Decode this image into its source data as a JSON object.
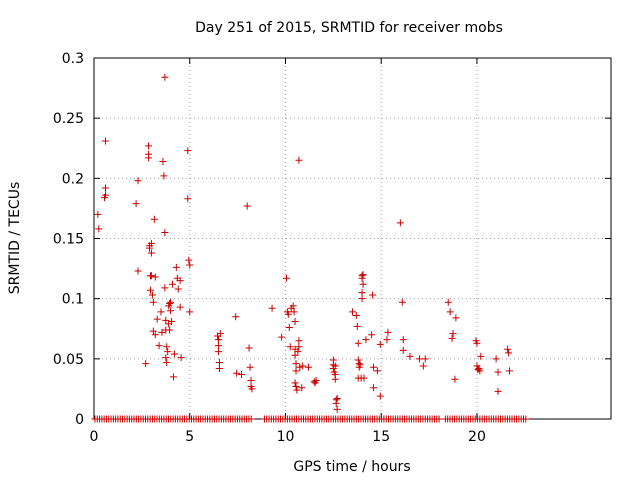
{
  "chart_data": {
    "type": "scatter",
    "title": "Day 251 of 2015, SRMTID for receiver mobs",
    "xlabel": "GPS time / hours",
    "ylabel": "SRMTID / TECUs",
    "xlim": [
      0,
      27
    ],
    "ylim": [
      0,
      0.3
    ],
    "xticks": [
      0,
      5,
      10,
      15,
      20
    ],
    "xtick_labels": [
      "0",
      "5",
      "10",
      "15",
      "20"
    ],
    "yticks": [
      0,
      0.05,
      0.1,
      0.15,
      0.2,
      0.25,
      0.3
    ],
    "ytick_labels": [
      "0",
      "0.05",
      "0.1",
      "0.15",
      "0.2",
      "0.25",
      "0.3"
    ],
    "grid": true,
    "marker": "+",
    "color": "#cc0000",
    "series": [
      {
        "name": "SRMTID",
        "points": [
          [
            0.2,
            0.17
          ],
          [
            0.25,
            0.158
          ],
          [
            0.6,
            0.231
          ],
          [
            0.6,
            0.192
          ],
          [
            0.6,
            0.186
          ],
          [
            0.55,
            0.184
          ],
          [
            2.2,
            0.179
          ],
          [
            2.3,
            0.198
          ],
          [
            2.3,
            0.123
          ],
          [
            2.7,
            0.046
          ],
          [
            2.85,
            0.227
          ],
          [
            2.85,
            0.22
          ],
          [
            2.85,
            0.217
          ],
          [
            2.9,
            0.144
          ],
          [
            2.9,
            0.142
          ],
          [
            3.0,
            0.146
          ],
          [
            3.0,
            0.138
          ],
          [
            2.95,
            0.119
          ],
          [
            2.95,
            0.107
          ],
          [
            3.05,
            0.103
          ],
          [
            3.1,
            0.097
          ],
          [
            3.0,
            0.119
          ],
          [
            3.1,
            0.073
          ],
          [
            3.2,
            0.07
          ],
          [
            3.15,
            0.166
          ],
          [
            3.2,
            0.118
          ],
          [
            3.3,
            0.083
          ],
          [
            3.4,
            0.061
          ],
          [
            3.5,
            0.089
          ],
          [
            3.55,
            0.072
          ],
          [
            3.6,
            0.214
          ],
          [
            3.65,
            0.202
          ],
          [
            3.7,
            0.284
          ],
          [
            3.7,
            0.155
          ],
          [
            3.7,
            0.109
          ],
          [
            3.75,
            0.082
          ],
          [
            3.75,
            0.074
          ],
          [
            3.75,
            0.051
          ],
          [
            3.8,
            0.047
          ],
          [
            3.8,
            0.06
          ],
          [
            3.85,
            0.056
          ],
          [
            3.9,
            0.094
          ],
          [
            3.9,
            0.079
          ],
          [
            3.95,
            0.074
          ],
          [
            3.95,
            0.096
          ],
          [
            4.0,
            0.097
          ],
          [
            4.0,
            0.09
          ],
          [
            4.05,
            0.081
          ],
          [
            4.1,
            0.112
          ],
          [
            4.15,
            0.035
          ],
          [
            4.2,
            0.054
          ],
          [
            4.3,
            0.126
          ],
          [
            4.35,
            0.117
          ],
          [
            4.4,
            0.108
          ],
          [
            4.5,
            0.115
          ],
          [
            4.5,
            0.093
          ],
          [
            4.55,
            0.051
          ],
          [
            4.9,
            0.223
          ],
          [
            4.9,
            0.183
          ],
          [
            4.95,
            0.132
          ],
          [
            5.0,
            0.128
          ],
          [
            5.0,
            0.089
          ],
          [
            6.45,
            0.069
          ],
          [
            6.5,
            0.066
          ],
          [
            6.5,
            0.061
          ],
          [
            6.5,
            0.056
          ],
          [
            6.55,
            0.047
          ],
          [
            6.55,
            0.042
          ],
          [
            6.6,
            0.071
          ],
          [
            7.4,
            0.085
          ],
          [
            7.45,
            0.038
          ],
          [
            7.7,
            0.037
          ],
          [
            8.0,
            0.177
          ],
          [
            8.1,
            0.059
          ],
          [
            8.15,
            0.043
          ],
          [
            8.2,
            0.032
          ],
          [
            8.2,
            0.027
          ],
          [
            8.25,
            0.025
          ],
          [
            9.3,
            0.092
          ],
          [
            9.8,
            0.068
          ],
          [
            10.05,
            0.117
          ],
          [
            10.1,
            0.089
          ],
          [
            10.15,
            0.087
          ],
          [
            10.2,
            0.076
          ],
          [
            10.25,
            0.06
          ],
          [
            10.3,
            0.092
          ],
          [
            10.4,
            0.094
          ],
          [
            10.45,
            0.089
          ],
          [
            10.5,
            0.081
          ],
          [
            10.5,
            0.058
          ],
          [
            10.5,
            0.053
          ],
          [
            10.55,
            0.046
          ],
          [
            10.55,
            0.04
          ],
          [
            10.5,
            0.03
          ],
          [
            10.55,
            0.027
          ],
          [
            10.6,
            0.024
          ],
          [
            10.65,
            0.056
          ],
          [
            10.7,
            0.065
          ],
          [
            10.7,
            0.06
          ],
          [
            10.75,
            0.043
          ],
          [
            10.7,
            0.215
          ],
          [
            10.85,
            0.026
          ],
          [
            10.9,
            0.044
          ],
          [
            11.2,
            0.043
          ],
          [
            11.5,
            0.031
          ],
          [
            11.6,
            0.032
          ],
          [
            11.55,
            0.03
          ],
          [
            12.5,
            0.049
          ],
          [
            12.5,
            0.045
          ],
          [
            12.5,
            0.042
          ],
          [
            12.55,
            0.039
          ],
          [
            12.6,
            0.037
          ],
          [
            12.6,
            0.033
          ],
          [
            12.6,
            0.044
          ],
          [
            12.65,
            0.016
          ],
          [
            12.65,
            0.013
          ],
          [
            12.7,
            0.008
          ],
          [
            12.7,
            0.017
          ],
          [
            13.5,
            0.089
          ],
          [
            13.7,
            0.086
          ],
          [
            13.75,
            0.077
          ],
          [
            13.8,
            0.063
          ],
          [
            13.8,
            0.049
          ],
          [
            13.85,
            0.046
          ],
          [
            13.9,
            0.045
          ],
          [
            13.95,
            0.034
          ],
          [
            13.8,
            0.034
          ],
          [
            13.85,
            0.043
          ],
          [
            14.0,
            0.119
          ],
          [
            14.0,
            0.117
          ],
          [
            14.05,
            0.12
          ],
          [
            14.05,
            0.112
          ],
          [
            14.0,
            0.105
          ],
          [
            14.0,
            0.1
          ],
          [
            14.1,
            0.034
          ],
          [
            14.2,
            0.066
          ],
          [
            14.55,
            0.103
          ],
          [
            14.5,
            0.07
          ],
          [
            14.6,
            0.043
          ],
          [
            14.6,
            0.026
          ],
          [
            14.8,
            0.04
          ],
          [
            14.95,
            0.062
          ],
          [
            14.95,
            0.019
          ],
          [
            15.3,
            0.066
          ],
          [
            15.35,
            0.072
          ],
          [
            16.0,
            0.163
          ],
          [
            16.1,
            0.097
          ],
          [
            16.15,
            0.066
          ],
          [
            16.15,
            0.057
          ],
          [
            16.5,
            0.052
          ],
          [
            17.0,
            0.05
          ],
          [
            17.2,
            0.044
          ],
          [
            17.3,
            0.05
          ],
          [
            18.5,
            0.097
          ],
          [
            18.6,
            0.089
          ],
          [
            18.7,
            0.067
          ],
          [
            18.75,
            0.071
          ],
          [
            18.85,
            0.033
          ],
          [
            18.9,
            0.084
          ],
          [
            19.95,
            0.065
          ],
          [
            20.0,
            0.063
          ],
          [
            20.0,
            0.044
          ],
          [
            20.05,
            0.041
          ],
          [
            20.1,
            0.042
          ],
          [
            20.15,
            0.04
          ],
          [
            20.2,
            0.052
          ],
          [
            21.0,
            0.05
          ],
          [
            21.1,
            0.039
          ],
          [
            21.1,
            0.023
          ],
          [
            21.6,
            0.058
          ],
          [
            21.65,
            0.055
          ],
          [
            21.7,
            0.04
          ]
        ]
      }
    ],
    "zero_baseline": {
      "name": "zero-values",
      "y": 0,
      "segments": [
        [
          0.05,
          8.3
        ],
        [
          8.9,
          18.1
        ],
        [
          18.35,
          22.6
        ]
      ],
      "step": 0.12
    }
  }
}
